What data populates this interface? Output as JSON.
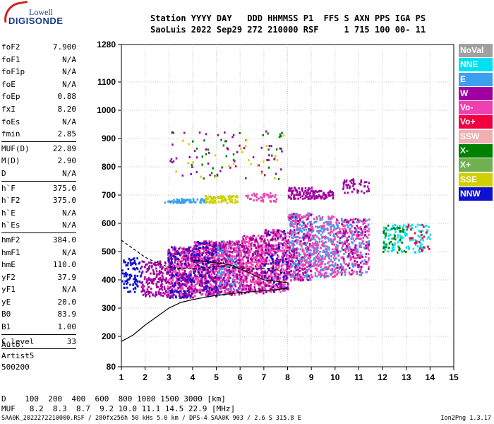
{
  "logo": {
    "brand": "Lowell",
    "product": "DIGISONDE"
  },
  "header": {
    "line1": "Station YYYY DAY   DDD HHMMSS P1  FFS S AXN PPS IGA PS",
    "line2": "SaoLuis 2022 Sep29 272 210000 RSF     1 715 100 00- 11"
  },
  "params": {
    "group1": [
      {
        "name": "foF2",
        "value": "7.900"
      },
      {
        "name": "foF1",
        "value": "N/A"
      },
      {
        "name": "foF1p",
        "value": "N/A"
      },
      {
        "name": "foE",
        "value": "N/A"
      },
      {
        "name": "foEp",
        "value": "0.88"
      },
      {
        "name": "fxI",
        "value": "8.20"
      },
      {
        "name": "foEs",
        "value": "N/A"
      },
      {
        "name": "fmin",
        "value": "2.85"
      }
    ],
    "group2": [
      {
        "name": "MUF(D)",
        "value": "22.89"
      },
      {
        "name": "M(D)",
        "value": "2.90"
      },
      {
        "name": "D",
        "value": "N/A"
      }
    ],
    "group3": [
      {
        "name": "h`F",
        "value": "375.0"
      },
      {
        "name": "h`F2",
        "value": "375.0"
      },
      {
        "name": "h`E",
        "value": "N/A"
      },
      {
        "name": "h`Es",
        "value": "N/A"
      }
    ],
    "group4": [
      {
        "name": "hmF2",
        "value": "384.0"
      },
      {
        "name": "hmF1",
        "value": "N/A"
      },
      {
        "name": "hmE",
        "value": "110.0"
      },
      {
        "name": "yF2",
        "value": "37.9"
      },
      {
        "name": "yF1",
        "value": "N/A"
      },
      {
        "name": "yE",
        "value": "20.0"
      },
      {
        "name": "B0",
        "value": "83.9"
      },
      {
        "name": "B1",
        "value": "1.00"
      }
    ],
    "clevel": {
      "name": "C-level",
      "value": "33"
    }
  },
  "autoscaling": {
    "line1": "Auto:",
    "line2": "Artist5",
    "line3": "500200"
  },
  "muf_table": {
    "row1": "D    100  200  400  600  800 1000 1500 3000 [km]",
    "row2": "MUF   8.2  8.3  8.7  9.2 10.0 11.1 14.5 22.9 [MHz]"
  },
  "footer": {
    "left": "SAA0K_2022272210000.RSF / 280fx256h 50 kHs 5.0 km / DPS-4 SAA0K 903 / 2.6 S 315.8 E",
    "right": "Ion2Png 1.3.17"
  },
  "legend": [
    {
      "label": "NoVal",
      "color": "#a0a0a0"
    },
    {
      "label": "NNE",
      "color": "#00e0f0"
    },
    {
      "label": "E",
      "color": "#3ca0f0"
    },
    {
      "label": "W",
      "color": "#a000a0"
    },
    {
      "label": "Vo-",
      "color": "#f040b0"
    },
    {
      "label": "Vo+",
      "color": "#f00040"
    },
    {
      "label": "SSW",
      "color": "#f0b0b0"
    },
    {
      "label": "X-",
      "color": "#008000"
    },
    {
      "label": "X+",
      "color": "#70b050"
    },
    {
      "label": "SSE",
      "color": "#d0d000"
    },
    {
      "label": "NNW",
      "color": "#1010d0"
    }
  ],
  "chart_data": {
    "type": "scatter",
    "xlim": [
      1,
      15
    ],
    "ylim": [
      80,
      1280
    ],
    "x_ticks": [
      1,
      2,
      3,
      4,
      5,
      6,
      7,
      8,
      9,
      10,
      11,
      12,
      13,
      14,
      15
    ],
    "y_ticks": [
      80,
      200,
      300,
      400,
      500,
      600,
      700,
      800,
      900,
      1000,
      1100,
      1280
    ],
    "grid": true,
    "clusters": [
      {
        "x": [
          1.0,
          1.8
        ],
        "y": [
          360,
          480
        ],
        "color": "#1010d0",
        "n": 90
      },
      {
        "x": [
          1.8,
          2.9
        ],
        "y": [
          345,
          470
        ],
        "color": "#a000a0",
        "n": 160
      },
      {
        "x": [
          2.9,
          4.0
        ],
        "y": [
          340,
          520
        ],
        "color": "#f040b0",
        "n": 340
      },
      {
        "x": [
          2.9,
          4.0
        ],
        "y": [
          340,
          520
        ],
        "color": "#a000a0",
        "n": 160
      },
      {
        "x": [
          2.9,
          4.0
        ],
        "y": [
          340,
          520
        ],
        "color": "#1010d0",
        "n": 90
      },
      {
        "x": [
          4.0,
          5.0
        ],
        "y": [
          345,
          540
        ],
        "color": "#f040b0",
        "n": 330
      },
      {
        "x": [
          4.0,
          5.0
        ],
        "y": [
          345,
          540
        ],
        "color": "#a000a0",
        "n": 160
      },
      {
        "x": [
          4.0,
          5.0
        ],
        "y": [
          345,
          540
        ],
        "color": "#1010d0",
        "n": 90
      },
      {
        "x": [
          5.0,
          6.0
        ],
        "y": [
          350,
          540
        ],
        "color": "#f040b0",
        "n": 320
      },
      {
        "x": [
          5.0,
          6.0
        ],
        "y": [
          350,
          540
        ],
        "color": "#a000a0",
        "n": 150
      },
      {
        "x": [
          5.0,
          6.0
        ],
        "y": [
          350,
          540
        ],
        "color": "#3ca0f0",
        "n": 60
      },
      {
        "x": [
          6.0,
          7.0
        ],
        "y": [
          355,
          560
        ],
        "color": "#f040b0",
        "n": 310
      },
      {
        "x": [
          6.0,
          7.0
        ],
        "y": [
          355,
          560
        ],
        "color": "#a000a0",
        "n": 130
      },
      {
        "x": [
          7.0,
          8.0
        ],
        "y": [
          360,
          580
        ],
        "color": "#f040b0",
        "n": 300
      },
      {
        "x": [
          7.0,
          8.0
        ],
        "y": [
          360,
          580
        ],
        "color": "#a000a0",
        "n": 110
      },
      {
        "x": [
          7.0,
          8.0
        ],
        "y": [
          360,
          580
        ],
        "color": "#1010d0",
        "n": 60
      },
      {
        "x": [
          8.0,
          9.0
        ],
        "y": [
          400,
          640
        ],
        "color": "#f040b0",
        "n": 290
      },
      {
        "x": [
          8.0,
          9.0
        ],
        "y": [
          400,
          640
        ],
        "color": "#3ca0f0",
        "n": 120
      },
      {
        "x": [
          8.0,
          9.0
        ],
        "y": [
          400,
          640
        ],
        "color": "#a000a0",
        "n": 90
      },
      {
        "x": [
          9.0,
          10.0
        ],
        "y": [
          410,
          630
        ],
        "color": "#f040b0",
        "n": 240
      },
      {
        "x": [
          9.0,
          10.0
        ],
        "y": [
          410,
          630
        ],
        "color": "#3ca0f0",
        "n": 100
      },
      {
        "x": [
          10.0,
          11.4
        ],
        "y": [
          420,
          620
        ],
        "color": "#f040b0",
        "n": 230
      },
      {
        "x": [
          10.0,
          11.4
        ],
        "y": [
          420,
          620
        ],
        "color": "#3ca0f0",
        "n": 90
      },
      {
        "x": [
          10.0,
          11.4
        ],
        "y": [
          420,
          620
        ],
        "color": "#a000a0",
        "n": 80
      },
      {
        "x": [
          8.0,
          9.0
        ],
        "y": [
          690,
          730
        ],
        "color": "#a000a0",
        "n": 80
      },
      {
        "x": [
          9.0,
          9.9
        ],
        "y": [
          690,
          720
        ],
        "color": "#a000a0",
        "n": 60
      },
      {
        "x": [
          10.3,
          11.4
        ],
        "y": [
          710,
          760
        ],
        "color": "#a000a0",
        "n": 50
      },
      {
        "x": [
          2.8,
          4.5
        ],
        "y": [
          675,
          690
        ],
        "color": "#3ca0f0",
        "n": 70
      },
      {
        "x": [
          4.5,
          5.9
        ],
        "y": [
          675,
          700
        ],
        "color": "#d0d000",
        "n": 80
      },
      {
        "x": [
          6.2,
          7.5
        ],
        "y": [
          680,
          710
        ],
        "color": "#f040b0",
        "n": 40
      },
      {
        "x": [
          12.0,
          13.0
        ],
        "y": [
          500,
          600
        ],
        "color": "#00e0f0",
        "n": 70
      },
      {
        "x": [
          12.0,
          13.0
        ],
        "y": [
          500,
          600
        ],
        "color": "#008000",
        "n": 40
      },
      {
        "x": [
          13.0,
          14.0
        ],
        "y": [
          500,
          600
        ],
        "color": "#00e0f0",
        "n": 55
      },
      {
        "x": [
          13.0,
          14.0
        ],
        "y": [
          500,
          600
        ],
        "color": "#f00040",
        "n": 25
      },
      {
        "x": [
          3.0,
          7.8
        ],
        "y": [
          760,
          940
        ],
        "color": "#a000a0",
        "n": 55
      },
      {
        "x": [
          3.0,
          7.8
        ],
        "y": [
          760,
          940
        ],
        "color": "#008000",
        "n": 35
      },
      {
        "x": [
          3.0,
          7.8
        ],
        "y": [
          760,
          940
        ],
        "color": "#d0d000",
        "n": 25
      }
    ],
    "trace_lower": {
      "x": [
        1.0,
        1.5,
        2.0,
        2.5,
        3.0,
        3.5,
        4.0,
        4.5,
        5.0,
        5.5,
        6.0,
        6.5,
        7.0,
        7.5,
        8.0
      ],
      "y": [
        180,
        205,
        240,
        270,
        300,
        320,
        330,
        338,
        345,
        350,
        355,
        358,
        362,
        365,
        370
      ]
    },
    "trace_dashed": {
      "x": [
        1.0,
        1.5,
        2.0,
        2.5,
        3.0,
        3.5,
        4.0,
        4.5,
        5.0,
        5.5,
        6.0,
        6.5,
        7.0,
        7.5,
        7.8
      ],
      "y": [
        540,
        510,
        480,
        460,
        445,
        440,
        440,
        443,
        448,
        445,
        440,
        438,
        440,
        442,
        420
      ]
    },
    "trace_upper": {
      "x": [
        4.0,
        4.5,
        5.0,
        5.5,
        6.0,
        6.5,
        7.0,
        7.5,
        8.0
      ],
      "y": [
        470,
        465,
        460,
        455,
        440,
        420,
        400,
        395,
        390
      ]
    }
  }
}
